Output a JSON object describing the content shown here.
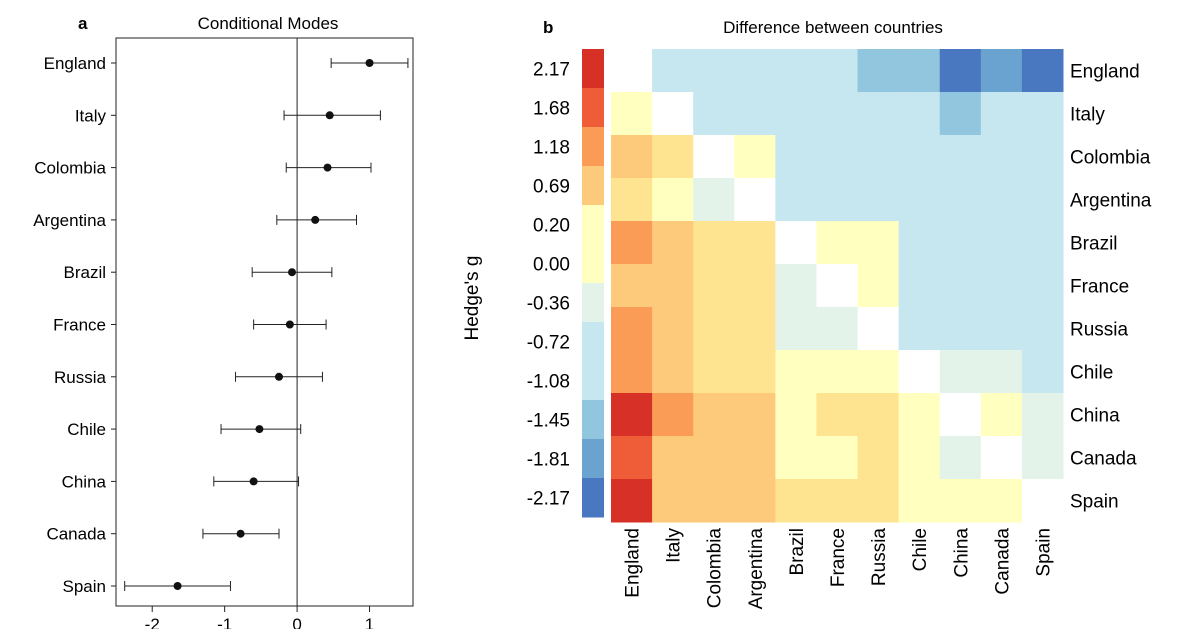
{
  "colors": {
    "axis": "#222222",
    "point": "#111111",
    "heat_scale": [
      "#d73027",
      "#ef5d38",
      "#fa9c56",
      "#fdc97b",
      "#fee390",
      "#ffffbf",
      "#e4f3ea",
      "#c6e6f0",
      "#92c5de",
      "#6aa3cf",
      "#4a78c0"
    ]
  },
  "chart_data": [
    {
      "type": "scatter",
      "panel_label": "a",
      "title": "Conditional Modes",
      "xlim": [
        -2.5,
        1.6
      ],
      "xticks": [
        -2,
        -1,
        0,
        1
      ],
      "xtick_labels": [
        "-2",
        "-1",
        "0",
        "1"
      ],
      "grid": false,
      "reference_line_x": 0,
      "series": [
        {
          "categories": [
            "England",
            "Italy",
            "Colombia",
            "Argentina",
            "Brazil",
            "France",
            "Russia",
            "Chile",
            "China",
            "Canada",
            "Spain"
          ],
          "values": [
            1.0,
            0.45,
            0.42,
            0.25,
            -0.07,
            -0.1,
            -0.25,
            -0.52,
            -0.6,
            -0.78,
            -1.65
          ],
          "lower": [
            0.47,
            -0.18,
            -0.15,
            -0.28,
            -0.62,
            -0.6,
            -0.85,
            -1.05,
            -1.15,
            -1.3,
            -2.38
          ],
          "upper": [
            1.53,
            1.15,
            1.02,
            0.82,
            0.48,
            0.4,
            0.35,
            0.05,
            0.02,
            -0.25,
            -0.92
          ]
        }
      ]
    },
    {
      "type": "heatmap",
      "panel_label": "b",
      "title": "Difference between countries",
      "ylabel": "Hedge's g",
      "row_labels": [
        "England",
        "Italy",
        "Colombia",
        "Argentina",
        "Brazil",
        "France",
        "Russia",
        "Chile",
        "China",
        "Canada",
        "Spain"
      ],
      "col_labels": [
        "England",
        "Italy",
        "Colombia",
        "Argentina",
        "Brazil",
        "France",
        "Russia",
        "Chile",
        "China",
        "Canada",
        "Spain"
      ],
      "scale_labels": [
        "2.17",
        "1.68",
        "1.18",
        "0.69",
        "0.20",
        "0.00",
        "-0.36",
        "-0.72",
        "-1.08",
        "-1.45",
        "-1.81",
        "-2.17"
      ],
      "scale_values": [
        2.17,
        1.68,
        1.18,
        0.69,
        0.2,
        0.0,
        -0.36,
        -0.72,
        -1.08,
        -1.45,
        -1.81,
        -2.17
      ],
      "values": [
        [
          0.0,
          -0.69,
          -1.08,
          -0.72,
          -1.08,
          -1.08,
          -1.45,
          -1.45,
          -2.17,
          -1.81,
          -2.17
        ],
        [
          0.2,
          0.0,
          -0.72,
          -0.72,
          -1.08,
          -1.08,
          -1.08,
          -1.08,
          -1.45,
          -1.08,
          -1.08
        ],
        [
          0.69,
          0.38,
          0.0,
          0.2,
          -0.72,
          -0.72,
          -0.72,
          -0.72,
          -1.08,
          -1.08,
          -1.08
        ],
        [
          0.38,
          0.2,
          -0.36,
          0.0,
          -0.72,
          -0.72,
          -0.72,
          -1.08,
          -1.08,
          -1.08,
          -1.08
        ],
        [
          1.18,
          0.69,
          0.38,
          0.38,
          0.0,
          0.2,
          0.2,
          -0.72,
          -0.72,
          -0.72,
          -0.72
        ],
        [
          0.69,
          0.69,
          0.38,
          0.38,
          -0.36,
          0.0,
          0.2,
          -0.72,
          -0.72,
          -0.72,
          -0.72
        ],
        [
          1.18,
          0.69,
          0.38,
          0.38,
          -0.36,
          -0.36,
          0.0,
          -0.72,
          -0.72,
          -0.72,
          -0.72
        ],
        [
          1.18,
          0.69,
          0.38,
          0.38,
          0.2,
          0.2,
          0.2,
          0.0,
          -0.36,
          -0.36,
          -0.72
        ],
        [
          2.17,
          1.18,
          0.69,
          0.69,
          0.2,
          0.38,
          0.38,
          0.2,
          0.0,
          0.2,
          -0.36
        ],
        [
          1.68,
          0.69,
          0.69,
          0.69,
          0.2,
          0.2,
          0.38,
          0.2,
          -0.36,
          0.0,
          -0.36
        ],
        [
          2.17,
          0.69,
          0.69,
          0.69,
          0.38,
          0.38,
          0.38,
          0.2,
          0.2,
          0.2,
          0.0
        ]
      ],
      "diagonal": "blank"
    }
  ]
}
